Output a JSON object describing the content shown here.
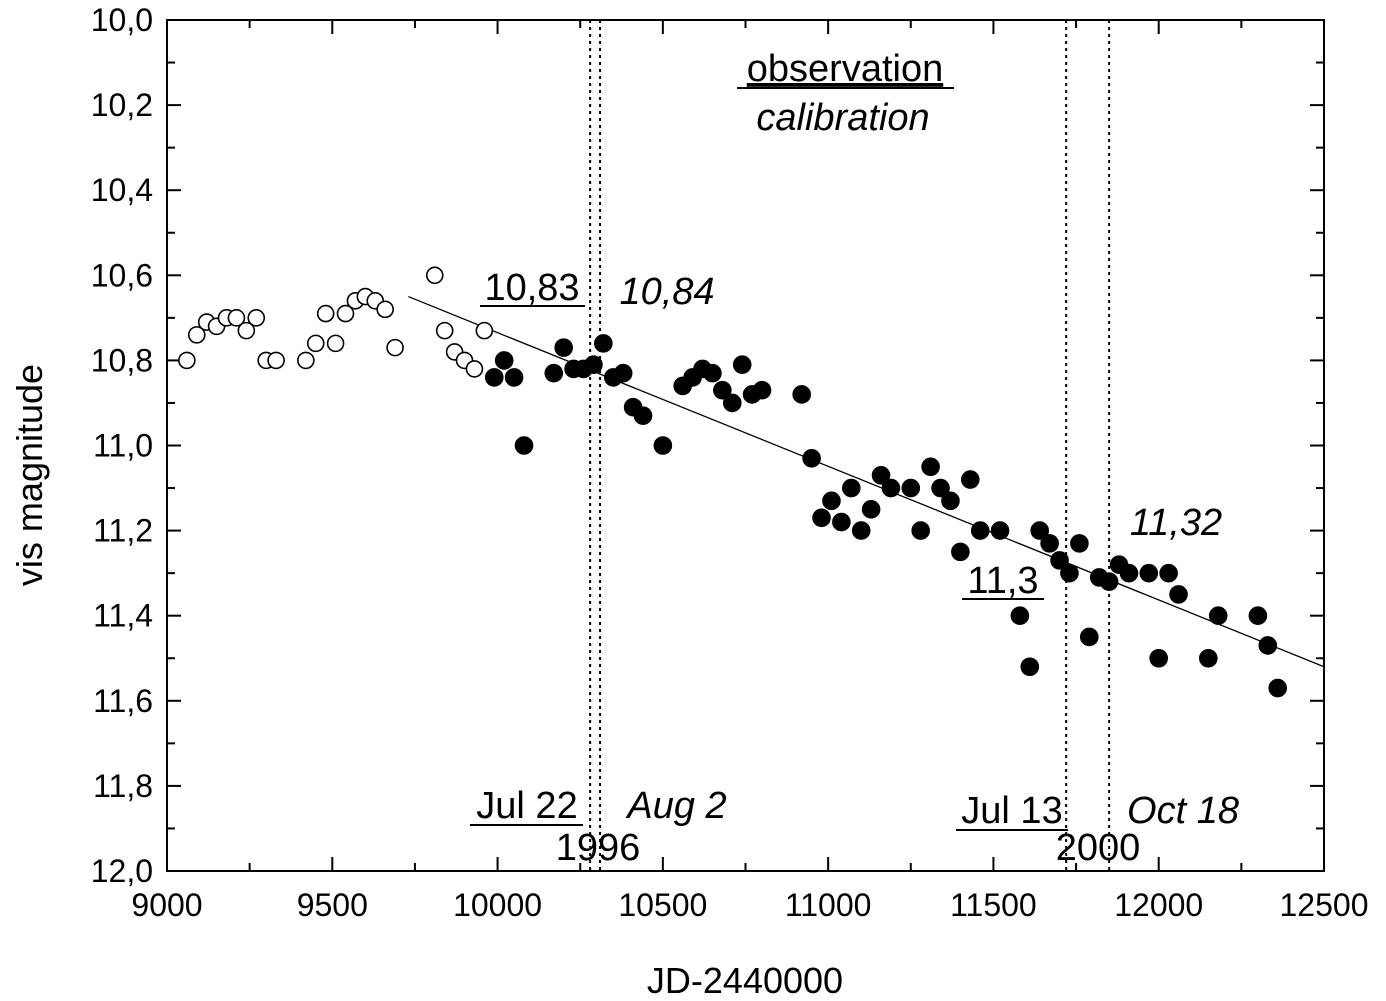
{
  "chart_data": {
    "type": "scatter",
    "title": "",
    "xlabel": "JD-2440000",
    "ylabel": "vis magnitude",
    "xlim": [
      9000,
      12500
    ],
    "ylim": [
      10.0,
      12.0
    ],
    "y_inverted": true,
    "grid": false,
    "legend": "none",
    "x_ticks": [
      9000,
      9500,
      10000,
      10500,
      11000,
      11500,
      12000,
      12500
    ],
    "x_tick_labels": [
      "9000",
      "9500",
      "10000",
      "10500",
      "11000",
      "11500",
      "12000",
      "12500"
    ],
    "y_ticks": [
      10.0,
      10.2,
      10.4,
      10.6,
      10.8,
      11.0,
      11.2,
      11.4,
      11.6,
      11.8,
      12.0
    ],
    "y_tick_labels": [
      "10,0",
      "10,2",
      "10,4",
      "10,6",
      "10,8",
      "11,0",
      "11,2",
      "11,4",
      "11,6",
      "11,8",
      "12,0"
    ],
    "series": [
      {
        "marker": "open-circle",
        "points": [
          [
            9060,
            10.8
          ],
          [
            9090,
            10.74
          ],
          [
            9120,
            10.71
          ],
          [
            9150,
            10.72
          ],
          [
            9180,
            10.7
          ],
          [
            9210,
            10.7
          ],
          [
            9240,
            10.73
          ],
          [
            9270,
            10.7
          ],
          [
            9300,
            10.8
          ],
          [
            9330,
            10.8
          ],
          [
            9420,
            10.8
          ],
          [
            9450,
            10.76
          ],
          [
            9480,
            10.69
          ],
          [
            9510,
            10.76
          ],
          [
            9540,
            10.69
          ],
          [
            9570,
            10.66
          ],
          [
            9600,
            10.65
          ],
          [
            9630,
            10.66
          ],
          [
            9660,
            10.68
          ],
          [
            9690,
            10.77
          ],
          [
            9810,
            10.6
          ],
          [
            9840,
            10.73
          ],
          [
            9870,
            10.78
          ],
          [
            9900,
            10.8
          ],
          [
            9930,
            10.82
          ],
          [
            9960,
            10.73
          ]
        ]
      },
      {
        "marker": "filled-circle",
        "points": [
          [
            9990,
            10.84
          ],
          [
            10020,
            10.8
          ],
          [
            10050,
            10.84
          ],
          [
            10080,
            11.0
          ],
          [
            10170,
            10.83
          ],
          [
            10200,
            10.77
          ],
          [
            10230,
            10.82
          ],
          [
            10260,
            10.82
          ],
          [
            10290,
            10.81
          ],
          [
            10320,
            10.76
          ],
          [
            10350,
            10.84
          ],
          [
            10380,
            10.83
          ],
          [
            10410,
            10.91
          ],
          [
            10440,
            10.93
          ],
          [
            10500,
            11.0
          ],
          [
            10560,
            10.86
          ],
          [
            10590,
            10.84
          ],
          [
            10620,
            10.82
          ],
          [
            10650,
            10.83
          ],
          [
            10680,
            10.87
          ],
          [
            10710,
            10.9
          ],
          [
            10740,
            10.81
          ],
          [
            10770,
            10.88
          ],
          [
            10800,
            10.87
          ],
          [
            10920,
            10.88
          ],
          [
            10950,
            11.03
          ],
          [
            10980,
            11.17
          ],
          [
            11010,
            11.13
          ],
          [
            11040,
            11.18
          ],
          [
            11070,
            11.1
          ],
          [
            11100,
            11.2
          ],
          [
            11130,
            11.15
          ],
          [
            11160,
            11.07
          ],
          [
            11190,
            11.1
          ],
          [
            11250,
            11.1
          ],
          [
            11280,
            11.2
          ],
          [
            11310,
            11.05
          ],
          [
            11340,
            11.1
          ],
          [
            11370,
            11.13
          ],
          [
            11400,
            11.25
          ],
          [
            11430,
            11.08
          ],
          [
            11460,
            11.2
          ],
          [
            11520,
            11.2
          ],
          [
            11580,
            11.4
          ],
          [
            11610,
            11.52
          ],
          [
            11640,
            11.2
          ],
          [
            11670,
            11.23
          ],
          [
            11700,
            11.27
          ],
          [
            11730,
            11.3
          ],
          [
            11760,
            11.23
          ],
          [
            11790,
            11.45
          ],
          [
            11820,
            11.31
          ],
          [
            11850,
            11.32
          ],
          [
            11880,
            11.28
          ],
          [
            11910,
            11.3
          ],
          [
            11970,
            11.3
          ],
          [
            12000,
            11.5
          ],
          [
            12030,
            11.3
          ],
          [
            12060,
            11.35
          ],
          [
            12150,
            11.5
          ],
          [
            12180,
            11.4
          ],
          [
            12300,
            11.4
          ],
          [
            12330,
            11.47
          ],
          [
            12360,
            11.57
          ]
        ]
      }
    ],
    "trend_line": {
      "x": [
        9730,
        12500
      ],
      "y": [
        10.65,
        11.52
      ]
    },
    "vertical_markers": [
      10280,
      10310,
      11720,
      11850
    ],
    "annotations": {
      "observation": "observation",
      "calibration": "calibration",
      "val_10_83": "10,83",
      "val_10_84": "10,84",
      "val_11_3": "11,3",
      "val_11_32": "11,32",
      "jul22": "Jul 22",
      "aug2": "Aug 2",
      "year1996": "1996",
      "jul13": "Jul 13",
      "oct18": "Oct 18",
      "year2000": "2000"
    }
  }
}
